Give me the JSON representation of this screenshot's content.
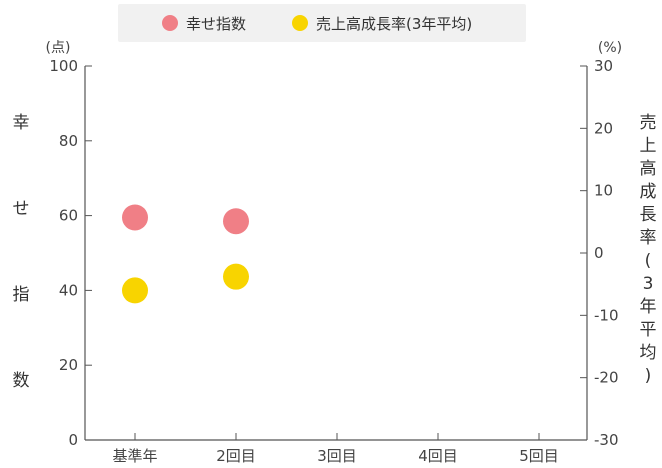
{
  "chart_data": {
    "type": "scatter",
    "categories": [
      "基準年",
      "2回目",
      "3回目",
      "4回目",
      "5回目"
    ],
    "series": [
      {
        "name": "幸せ指数",
        "axis": "left",
        "color": "#f07f86",
        "values": [
          59.5,
          58.5,
          null,
          null,
          null
        ]
      },
      {
        "name": "売上高成長率(3年平均)",
        "axis": "right",
        "color": "#f8d400",
        "values": [
          -6,
          -3.8,
          null,
          null,
          null
        ]
      }
    ],
    "y_left": {
      "label": "幸せ指数",
      "unit": "(点)",
      "ylim": [
        0,
        100
      ],
      "ticks": [
        0,
        20,
        40,
        60,
        80,
        100
      ]
    },
    "y_right": {
      "label": "売上高成長率(3年平均)",
      "unit": "(%)",
      "ylim": [
        -30,
        30
      ],
      "ticks": [
        -30,
        -20,
        -10,
        0,
        10,
        20,
        30
      ]
    },
    "legend_position": "top-center",
    "grid": false
  }
}
